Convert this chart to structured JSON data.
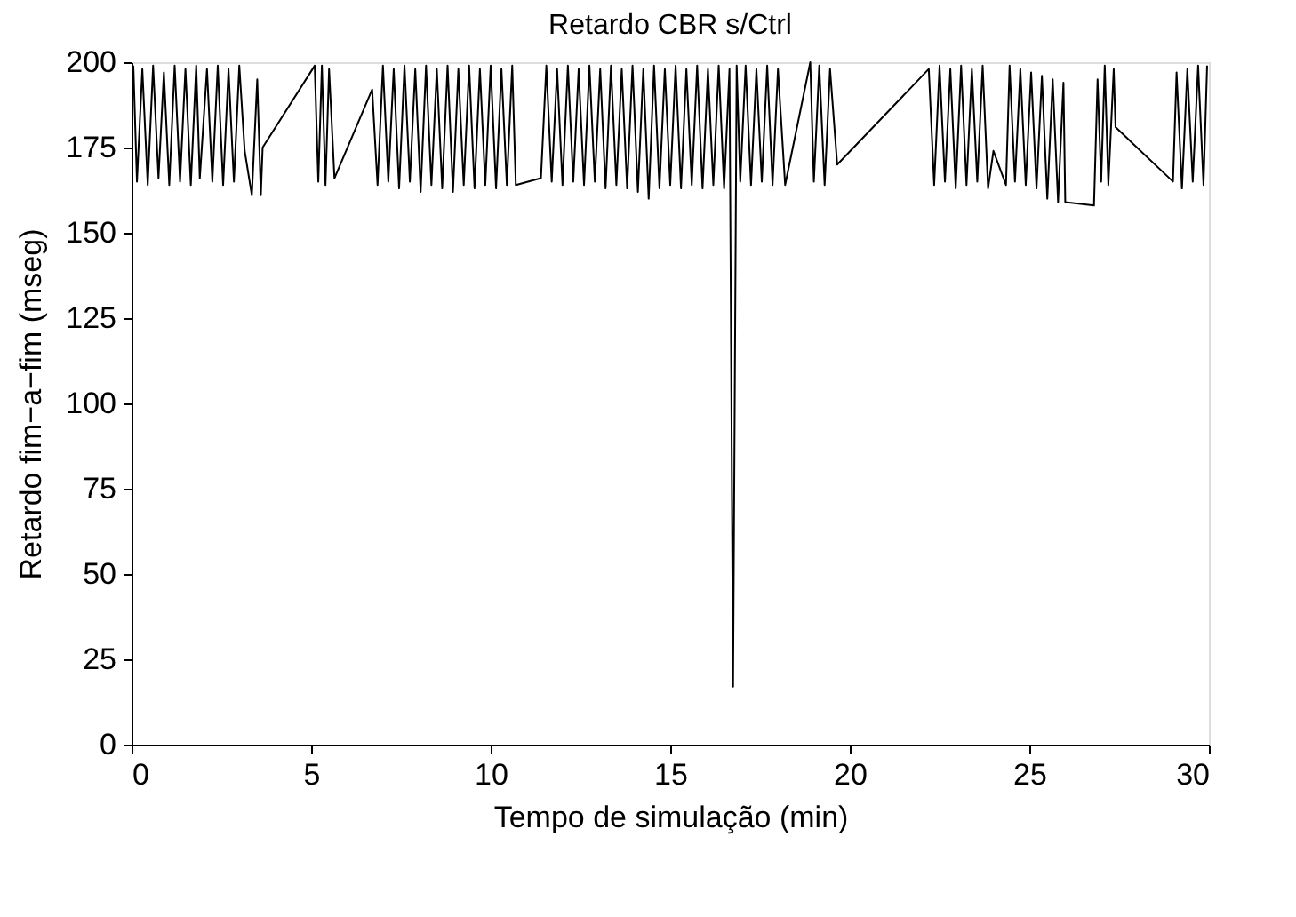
{
  "chart_data": {
    "type": "line",
    "title": "Retardo CBR s/Ctrl",
    "xlabel": "Tempo de simulação (min)",
    "ylabel": "Retardo fim−a−fim (mseg)",
    "xlim": [
      0,
      30
    ],
    "xticks": [
      0,
      5,
      10,
      15,
      20,
      25,
      30
    ],
    "ylim": [
      0,
      200
    ],
    "yticks": [
      0,
      25,
      50,
      75,
      100,
      125,
      150,
      175,
      200
    ],
    "grid": false,
    "marker": "none",
    "line_style": "solid",
    "series": [
      {
        "color": "#000000",
        "x": [
          0.05,
          0.15,
          0.3,
          0.45,
          0.6,
          0.75,
          0.9,
          1.05,
          1.2,
          1.35,
          1.5,
          1.65,
          1.8,
          1.9,
          2.1,
          2.25,
          2.4,
          2.55,
          2.7,
          2.85,
          3.0,
          3.15,
          3.35,
          3.5,
          3.6,
          3.65,
          5.1,
          5.2,
          5.3,
          5.4,
          5.5,
          5.65,
          6.7,
          6.85,
          7.0,
          7.15,
          7.3,
          7.45,
          7.6,
          7.75,
          7.9,
          8.05,
          8.2,
          8.35,
          8.5,
          8.65,
          8.8,
          8.95,
          9.1,
          9.25,
          9.4,
          9.55,
          9.7,
          9.85,
          10.0,
          10.15,
          10.3,
          10.45,
          10.6,
          10.7,
          11.4,
          11.55,
          11.7,
          11.85,
          12.0,
          12.15,
          12.3,
          12.45,
          12.6,
          12.75,
          12.9,
          13.05,
          13.2,
          13.35,
          13.5,
          13.65,
          13.8,
          13.95,
          14.1,
          14.25,
          14.4,
          14.55,
          14.7,
          14.85,
          15.0,
          15.15,
          15.3,
          15.45,
          15.6,
          15.75,
          15.9,
          16.05,
          16.2,
          16.35,
          16.5,
          16.65,
          16.75,
          16.85,
          16.95,
          17.1,
          17.25,
          17.4,
          17.55,
          17.7,
          17.85,
          18.0,
          18.2,
          18.9,
          19.0,
          19.15,
          19.3,
          19.45,
          19.65,
          22.2,
          22.35,
          22.5,
          22.65,
          22.8,
          22.95,
          23.1,
          23.25,
          23.4,
          23.55,
          23.7,
          23.85,
          24.0,
          24.35,
          24.45,
          24.6,
          24.75,
          24.9,
          25.05,
          25.2,
          25.35,
          25.5,
          25.65,
          25.8,
          25.95,
          26.0,
          26.8,
          26.9,
          27.0,
          27.1,
          27.2,
          27.35,
          27.4,
          29.0,
          29.1,
          29.25,
          29.4,
          29.55,
          29.7,
          29.85,
          29.95
        ],
        "values": [
          199,
          165,
          198,
          164,
          199,
          166,
          197,
          164,
          199,
          165,
          198,
          164,
          199,
          166,
          198,
          165,
          199,
          164,
          198,
          165,
          199,
          174,
          161,
          195,
          161,
          175,
          199,
          165,
          199,
          164,
          198,
          166,
          192,
          164,
          199,
          165,
          198,
          163,
          199,
          165,
          198,
          162,
          199,
          164,
          198,
          163,
          199,
          162,
          198,
          164,
          199,
          163,
          198,
          164,
          199,
          163,
          198,
          164,
          199,
          164,
          166,
          199,
          165,
          198,
          164,
          199,
          165,
          198,
          164,
          199,
          165,
          198,
          163,
          199,
          164,
          198,
          163,
          199,
          162,
          198,
          160,
          199,
          163,
          198,
          164,
          199,
          163,
          198,
          164,
          199,
          163,
          198,
          164,
          199,
          163,
          198,
          17,
          199,
          165,
          199,
          164,
          198,
          165,
          199,
          164,
          198,
          164,
          200,
          165,
          199,
          164,
          198,
          170,
          198,
          164,
          199,
          165,
          198,
          163,
          199,
          164,
          198,
          165,
          199,
          163,
          174,
          164,
          199,
          165,
          198,
          164,
          197,
          163,
          196,
          160,
          195,
          159,
          194,
          159,
          158,
          195,
          165,
          199,
          164,
          198,
          181,
          165,
          197,
          163,
          198,
          165,
          199,
          164,
          199
        ]
      }
    ]
  }
}
